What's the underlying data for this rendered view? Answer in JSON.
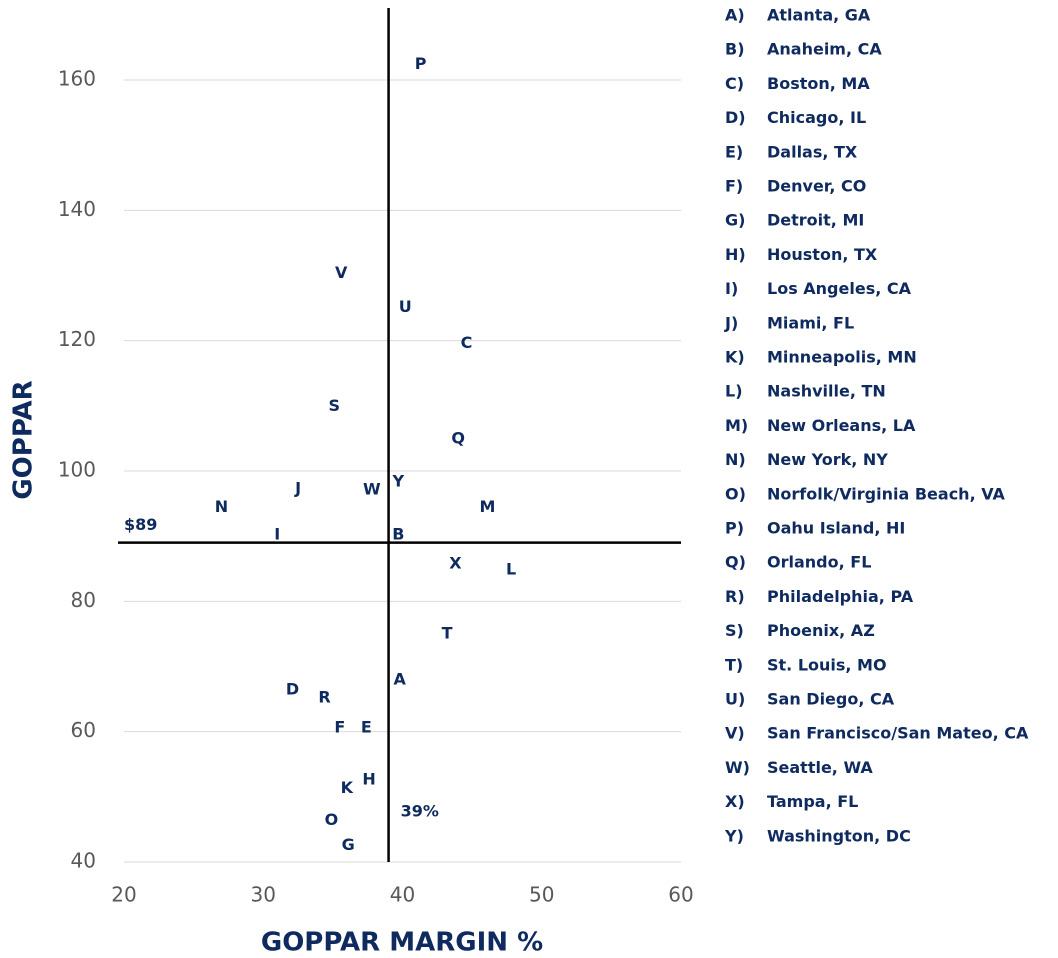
{
  "chart_data": {
    "type": "scatter",
    "xlabel": "GOPPAR MARGIN %",
    "ylabel": "GOPPAR",
    "xlim": [
      20,
      60
    ],
    "xticks": [
      20,
      30,
      40,
      50,
      60
    ],
    "ylim": [
      40,
      160
    ],
    "yticks": [
      40,
      60,
      80,
      100,
      120,
      140,
      160
    ],
    "grid": true,
    "color": "#0e2a5f",
    "reference_lines": {
      "x": 39,
      "x_label": "39%",
      "y": 89,
      "y_label": "$89"
    },
    "labels": [
      "A",
      "B",
      "C",
      "D",
      "E",
      "F",
      "G",
      "H",
      "I",
      "J",
      "K",
      "L",
      "M",
      "N",
      "O",
      "P",
      "Q",
      "R",
      "S",
      "T",
      "U",
      "V",
      "W",
      "X",
      "Y"
    ],
    "x": [
      39.8,
      39.7,
      44.6,
      32.1,
      37.4,
      35.5,
      36.1,
      37.6,
      31.0,
      32.5,
      36.0,
      47.8,
      46.1,
      27.0,
      34.9,
      41.3,
      44.0,
      34.4,
      35.1,
      43.2,
      40.2,
      35.6,
      37.8,
      43.8,
      39.7
    ],
    "y": [
      67.9,
      90.2,
      119.6,
      66.4,
      60.6,
      60.6,
      42.5,
      52.6,
      90.2,
      97.2,
      51.3,
      84.8,
      94.4,
      94.4,
      46.4,
      162.4,
      104.9,
      65.2,
      109.9,
      75.0,
      125.1,
      130.3,
      97.1,
      85.7,
      98.3
    ],
    "legend": [
      {
        "key": "A)",
        "name": "Atlanta, GA"
      },
      {
        "key": "B)",
        "name": "Anaheim, CA"
      },
      {
        "key": "C)",
        "name": "Boston, MA"
      },
      {
        "key": "D)",
        "name": "Chicago, IL"
      },
      {
        "key": "E)",
        "name": "Dallas, TX"
      },
      {
        "key": "F)",
        "name": "Denver, CO"
      },
      {
        "key": "G)",
        "name": "Detroit, MI"
      },
      {
        "key": "H)",
        "name": "Houston, TX"
      },
      {
        "key": "I)",
        "name": "Los Angeles, CA"
      },
      {
        "key": "J)",
        "name": "Miami, FL"
      },
      {
        "key": "K)",
        "name": "Minneapolis, MN"
      },
      {
        "key": "L)",
        "name": "Nashville, TN"
      },
      {
        "key": "M)",
        "name": "New Orleans, LA"
      },
      {
        "key": "N)",
        "name": "New York, NY"
      },
      {
        "key": "O)",
        "name": "Norfolk/Virginia Beach, VA"
      },
      {
        "key": "P)",
        "name": "Oahu Island, HI"
      },
      {
        "key": "Q)",
        "name": "Orlando, FL"
      },
      {
        "key": "R)",
        "name": "Philadelphia, PA"
      },
      {
        "key": "S)",
        "name": "Phoenix, AZ"
      },
      {
        "key": "T)",
        "name": "St. Louis, MO"
      },
      {
        "key": "U)",
        "name": "San Diego, CA"
      },
      {
        "key": "V)",
        "name": "San Francisco/San Mateo, CA"
      },
      {
        "key": "W)",
        "name": "Seattle, WA"
      },
      {
        "key": "X)",
        "name": "Tampa, FL"
      },
      {
        "key": "Y)",
        "name": "Washington, DC"
      }
    ]
  }
}
